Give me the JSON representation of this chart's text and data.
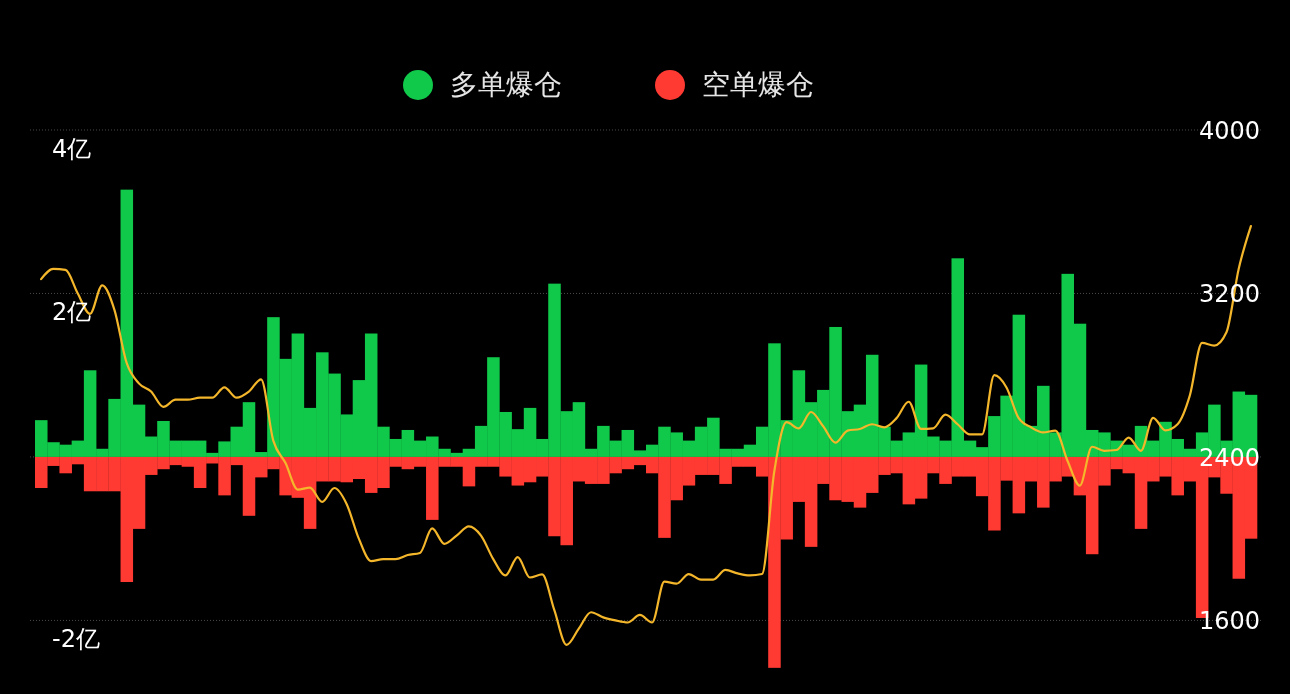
{
  "chart_data": {
    "type": "bar",
    "categories": [
      null,
      null,
      null,
      null,
      null,
      null,
      null,
      null,
      null,
      null,
      null,
      null,
      null,
      null,
      null,
      null,
      null,
      null,
      null,
      null,
      null,
      null,
      null,
      null,
      null,
      null,
      null,
      null,
      null,
      null,
      null,
      null,
      null,
      null,
      null,
      null,
      null,
      null,
      null,
      null,
      null,
      null,
      null,
      null,
      null,
      null,
      null,
      null,
      null,
      null,
      null,
      null,
      null,
      null,
      null,
      null,
      null,
      null,
      null,
      null,
      null,
      null,
      null,
      null,
      null,
      null,
      null,
      null,
      null,
      null,
      null,
      null,
      null,
      null,
      null,
      null,
      null,
      null,
      null,
      null,
      null,
      null,
      null,
      null,
      null,
      null,
      null,
      null,
      null,
      null,
      null,
      null,
      null,
      null,
      null,
      null,
      null,
      null,
      null,
      null
    ],
    "series": [
      {
        "name": "多单爆仓",
        "color": "#10c94a",
        "values": [
          0.45,
          0.18,
          0.15,
          0.2,
          1.06,
          0.1,
          0.71,
          3.27,
          0.64,
          0.25,
          0.44,
          0.2,
          0.2,
          0.2,
          0.05,
          0.19,
          0.37,
          0.67,
          0.06,
          1.71,
          1.2,
          1.51,
          0.6,
          1.28,
          1.02,
          0.52,
          0.94,
          1.51,
          0.37,
          0.22,
          0.33,
          0.2,
          0.25,
          0.1,
          0.05,
          0.1,
          0.38,
          1.22,
          0.55,
          0.34,
          0.6,
          0.22,
          2.12,
          0.56,
          0.67,
          0.1,
          0.38,
          0.2,
          0.33,
          0.08,
          0.15,
          0.37,
          0.3,
          0.2,
          0.37,
          0.48,
          0.1,
          0.1,
          0.15,
          0.37,
          1.39,
          0.45,
          1.06,
          0.67,
          0.82,
          1.59,
          0.56,
          0.64,
          1.25,
          0.37,
          0.2,
          0.3,
          1.13,
          0.25,
          0.2,
          2.43,
          0.2,
          0.12,
          0.5,
          0.75,
          1.74,
          0.38,
          0.87,
          0.3,
          2.24,
          1.63,
          0.33,
          0.3,
          0.2,
          0.15,
          0.38,
          0.2,
          0.43,
          0.22,
          0.1,
          0.3,
          0.64,
          0.2,
          0.8,
          0.76
        ]
      },
      {
        "name": "空单爆仓",
        "color": "#ff3a33",
        "values": [
          -0.38,
          -0.11,
          -0.2,
          -0.09,
          -0.42,
          -0.42,
          -0.42,
          -1.53,
          -0.88,
          -0.22,
          -0.15,
          -0.1,
          -0.12,
          -0.38,
          -0.08,
          -0.47,
          -0.1,
          -0.72,
          -0.25,
          -0.15,
          -0.47,
          -0.5,
          -0.88,
          -0.3,
          -0.3,
          -0.31,
          -0.27,
          -0.44,
          -0.38,
          -0.12,
          -0.15,
          -0.12,
          -0.77,
          -0.12,
          -0.12,
          -0.36,
          -0.12,
          -0.12,
          -0.24,
          -0.35,
          -0.31,
          -0.24,
          -0.97,
          -1.08,
          -0.3,
          -0.33,
          -0.33,
          -0.2,
          -0.15,
          -0.1,
          -0.2,
          -0.99,
          -0.53,
          -0.35,
          -0.22,
          -0.22,
          -0.33,
          -0.12,
          -0.12,
          -0.24,
          -2.58,
          -1.01,
          -0.55,
          -1.1,
          -0.33,
          -0.53,
          -0.55,
          -0.62,
          -0.44,
          -0.22,
          -0.2,
          -0.58,
          -0.51,
          -0.2,
          -0.33,
          -0.24,
          -0.24,
          -0.48,
          -0.9,
          -0.29,
          -0.69,
          -0.3,
          -0.62,
          -0.3,
          -0.24,
          -0.47,
          -1.19,
          -0.35,
          -0.15,
          -0.2,
          -0.88,
          -0.3,
          -0.24,
          -0.47,
          -0.3,
          -1.97,
          -0.25,
          -0.45,
          -1.49,
          -1.0
        ]
      },
      {
        "type": "line",
        "axis": "y2",
        "color": "#f4b62a",
        "values": [
          3270,
          3320,
          3315,
          3200,
          3100,
          3240,
          3120,
          2860,
          2760,
          2720,
          2645,
          2680,
          2680,
          2690,
          2690,
          2740,
          2690,
          2720,
          2780,
          2480,
          2370,
          2240,
          2250,
          2180,
          2248,
          2170,
          2000,
          1890,
          1900,
          1900,
          1920,
          1930,
          2050,
          1975,
          2015,
          2060,
          2015,
          1900,
          1820,
          1910,
          1810,
          1825,
          1650,
          1480,
          1560,
          1640,
          1615,
          1600,
          1590,
          1627,
          1590,
          1790,
          1780,
          1827,
          1800,
          1800,
          1847,
          1830,
          1820,
          1827,
          2330,
          2570,
          2540,
          2620,
          2550,
          2470,
          2529,
          2537,
          2560,
          2545,
          2590,
          2670,
          2537,
          2540,
          2607,
          2560,
          2510,
          2510,
          2800,
          2740,
          2590,
          2545,
          2520,
          2529,
          2380,
          2260,
          2450,
          2430,
          2434,
          2495,
          2430,
          2591,
          2530,
          2560,
          2700,
          2958,
          2945,
          3010,
          3320,
          3530
        ]
      }
    ],
    "ylim": [
      -2.9,
      5.59
    ],
    "yticks": [
      {
        "value": 4,
        "label": "4亿"
      },
      {
        "value": 2,
        "label": "2亿"
      },
      {
        "value": 0,
        "label": null
      },
      {
        "value": -2,
        "label": "-2亿"
      }
    ],
    "y2lim": [
      1240,
      4636
    ],
    "y2ticks": [
      1600,
      2400,
      3200,
      4000
    ],
    "grid": "y",
    "legend": "top",
    "stacked": true
  }
}
